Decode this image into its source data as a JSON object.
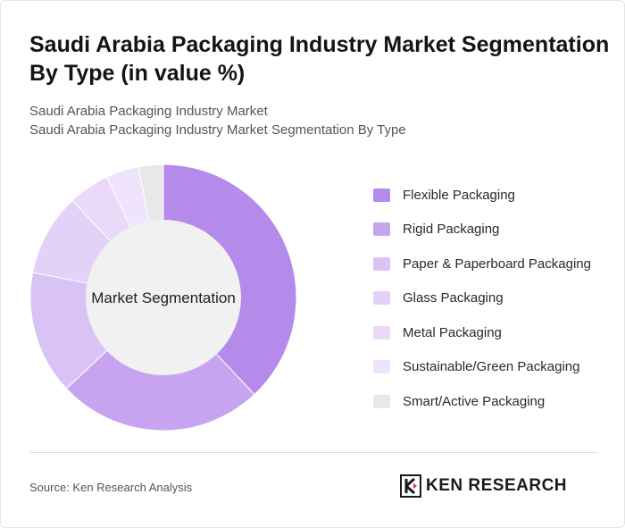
{
  "header": {
    "title": "Saudi Arabia Packaging Industry Market Segmentation By Type (in value %)",
    "subtitle_line1": "Saudi Arabia Packaging Industry Market",
    "subtitle_line2": "Saudi Arabia Packaging Industry Market Segmentation By Type"
  },
  "chart_data": {
    "type": "pie",
    "donut": true,
    "center_label": "Market Segmentation",
    "categories": [
      "Flexible Packaging",
      "Rigid Packaging",
      "Paper & Paperboard Packaging",
      "Glass Packaging",
      "Metal Packaging",
      "Sustainable/Green Packaging",
      "Smart/Active Packaging"
    ],
    "values": [
      38,
      25,
      15,
      10,
      5,
      4,
      3
    ],
    "colors": [
      "#b48aea",
      "#c6a4ef",
      "#d9c3f5",
      "#e3d2f8",
      "#ead9f9",
      "#efe4fb",
      "#e8e8e8"
    ],
    "legend_position": "right"
  },
  "footer": {
    "source": "Source: Ken Research Analysis",
    "logo_text": "KEN RESEARCH"
  }
}
